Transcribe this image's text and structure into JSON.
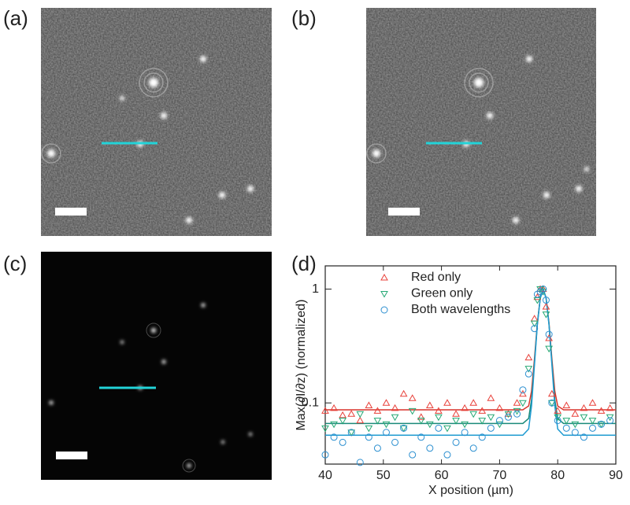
{
  "panels": {
    "a": "(a)",
    "b": "(b)",
    "c": "(c)",
    "d": "(d)"
  },
  "chart_data": {
    "type": "scatter",
    "xlabel": "X position (µm)",
    "ylabel": "Max(∂I/∂z)   (normalized)",
    "xlim": [
      40,
      90
    ],
    "xticks": [
      40,
      50,
      60,
      70,
      80,
      90
    ],
    "ylim": [
      0.029,
      1.6
    ],
    "yticks": [
      0.1,
      1
    ],
    "log_y": true,
    "legend": "top-left",
    "x": [
      40,
      41.5,
      43,
      44.5,
      46,
      47.5,
      49,
      50.5,
      52,
      53.5,
      55,
      56.5,
      58,
      59.5,
      61,
      62.5,
      64,
      65.5,
      67,
      68.5,
      70,
      71.5,
      73,
      74,
      75,
      76,
      76.5,
      77,
      77.5,
      78,
      78.5,
      79,
      80,
      81.5,
      83,
      84.5,
      86,
      87.5,
      89
    ],
    "series": [
      {
        "name": "Red only",
        "color": "#e8413a",
        "marker": "triangle-up",
        "values": [
          0.085,
          0.09,
          0.078,
          0.08,
          0.07,
          0.095,
          0.085,
          0.1,
          0.09,
          0.12,
          0.11,
          0.075,
          0.095,
          0.085,
          0.1,
          0.08,
          0.09,
          0.1,
          0.085,
          0.11,
          0.09,
          0.08,
          0.1,
          0.12,
          0.25,
          0.55,
          0.85,
          1.0,
          1.0,
          0.7,
          0.37,
          0.12,
          0.085,
          0.095,
          0.08,
          0.09,
          0.1,
          0.085,
          0.09
        ]
      },
      {
        "name": "Green only",
        "color": "#25a874",
        "marker": "triangle-down",
        "values": [
          0.06,
          0.065,
          0.07,
          0.055,
          0.08,
          0.06,
          0.07,
          0.065,
          0.075,
          0.06,
          0.085,
          0.07,
          0.065,
          0.075,
          0.06,
          0.07,
          0.065,
          0.08,
          0.07,
          0.075,
          0.065,
          0.08,
          0.085,
          0.1,
          0.2,
          0.5,
          0.8,
          1.0,
          0.95,
          0.6,
          0.3,
          0.1,
          0.075,
          0.07,
          0.065,
          0.075,
          0.07,
          0.065,
          0.075
        ]
      },
      {
        "name": "Both wavelengths",
        "color": "#2b8fd0",
        "marker": "circle",
        "values": [
          0.035,
          0.05,
          0.045,
          0.055,
          0.03,
          0.05,
          0.04,
          0.055,
          0.045,
          0.06,
          0.035,
          0.05,
          0.04,
          0.06,
          0.035,
          0.045,
          0.055,
          0.04,
          0.05,
          0.06,
          0.07,
          0.075,
          0.08,
          0.13,
          0.18,
          0.45,
          0.9,
          0.95,
          1.0,
          0.8,
          0.4,
          0.1,
          0.07,
          0.06,
          0.055,
          0.05,
          0.06,
          0.065,
          0.07
        ]
      }
    ],
    "fit_lines": [
      {
        "color": "#d9342b",
        "x": [
          40,
          74,
          75,
          75.5,
          76,
          76.5,
          77,
          77.5,
          78,
          78.5,
          79,
          79.5,
          80,
          81,
          90
        ],
        "values": [
          0.087,
          0.087,
          0.094,
          0.127,
          0.244,
          0.505,
          0.838,
          1,
          0.838,
          0.505,
          0.244,
          0.127,
          0.094,
          0.087,
          0.087
        ]
      },
      {
        "color": "#1a8a7a",
        "x": [
          40,
          74,
          75,
          75.5,
          76,
          76.5,
          77,
          77.5,
          78,
          78.5,
          79,
          79.5,
          80,
          81,
          90
        ],
        "values": [
          0.066,
          0.066,
          0.073,
          0.107,
          0.227,
          0.494,
          0.834,
          1,
          0.834,
          0.494,
          0.227,
          0.107,
          0.073,
          0.066,
          0.066
        ]
      },
      {
        "color": "#1f9bd1",
        "x": [
          40,
          74,
          75,
          75.5,
          76,
          76.5,
          77,
          77.5,
          78,
          78.5,
          79,
          79.5,
          80,
          81,
          90
        ],
        "values": [
          0.052,
          0.052,
          0.059,
          0.094,
          0.215,
          0.486,
          0.832,
          1,
          0.832,
          0.486,
          0.215,
          0.094,
          0.059,
          0.052,
          0.052
        ]
      }
    ]
  }
}
